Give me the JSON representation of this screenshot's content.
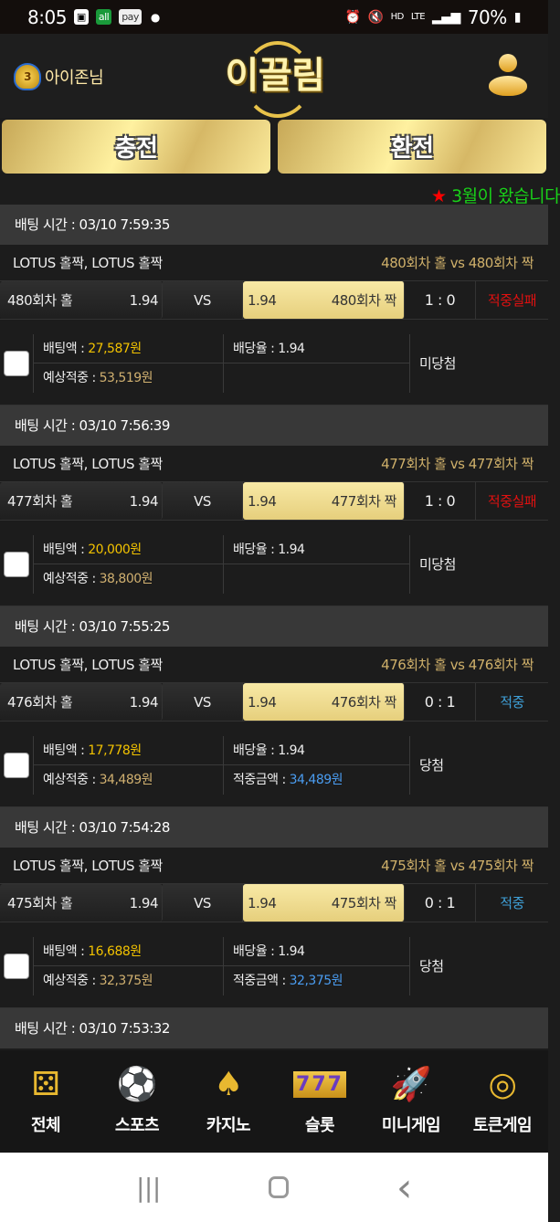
{
  "status_bar": {
    "time": "8:05",
    "icons": [
      "gallery-icon",
      "allone-icon",
      "pay-icon"
    ],
    "battery": "70%",
    "right_icons": [
      "alarm-icon",
      "mute-icon",
      "hd-voice-icon",
      "lte-icon",
      "signal-icon"
    ]
  },
  "header": {
    "username": "아이존님",
    "logo": "이끌림",
    "charge_label": "충전",
    "exchange_label": "환전"
  },
  "marquee": {
    "star": "★",
    "text": " 3월이 왔습니다"
  },
  "colors": {
    "gold": "#e6cf7c",
    "bet_amount": "#f2c200",
    "win": "#3fa0d8",
    "lose": "#e01010"
  },
  "bets": [
    {
      "time": "배팅 시간 : 03/10 7:59:35",
      "game": "LOTUS 홀짝, LOTUS 홀짝",
      "matchup": "480회차 홀  vs  480회차 짝",
      "home": "480회차 홀",
      "home_odds": "1.94",
      "vs": "VS",
      "away_odds": "1.94",
      "away": "480회차 짝",
      "score": "1 : 0",
      "result": "적중실패",
      "result_type": "lose",
      "bet_label": "배팅액 : ",
      "bet_amount": "27,587원",
      "odds_label": "배당율 : 1.94",
      "expected_label": "예상적중 : ",
      "expected": "53,519원",
      "win_label": "",
      "win_amount": "",
      "outcome": "미당첨"
    },
    {
      "time": "배팅 시간 : 03/10 7:56:39",
      "game": "LOTUS 홀짝, LOTUS 홀짝",
      "matchup": "477회차 홀  vs  477회차 짝",
      "home": "477회차 홀",
      "home_odds": "1.94",
      "vs": "VS",
      "away_odds": "1.94",
      "away": "477회차 짝",
      "score": "1 : 0",
      "result": "적중실패",
      "result_type": "lose",
      "bet_label": "배팅액 : ",
      "bet_amount": "20,000원",
      "odds_label": "배당율 : 1.94",
      "expected_label": "예상적중 : ",
      "expected": "38,800원",
      "win_label": "",
      "win_amount": "",
      "outcome": "미당첨"
    },
    {
      "time": "배팅 시간 : 03/10 7:55:25",
      "game": "LOTUS 홀짝, LOTUS 홀짝",
      "matchup": "476회차 홀  vs  476회차 짝",
      "home": "476회차 홀",
      "home_odds": "1.94",
      "vs": "VS",
      "away_odds": "1.94",
      "away": "476회차 짝",
      "score": "0 : 1",
      "result": "적중",
      "result_type": "win",
      "bet_label": "배팅액 : ",
      "bet_amount": "17,778원",
      "odds_label": "배당율 : 1.94",
      "expected_label": "예상적중 : ",
      "expected": "34,489원",
      "win_label": "적중금액 : ",
      "win_amount": "34,489원",
      "outcome": "당첨"
    },
    {
      "time": "배팅 시간 : 03/10 7:54:28",
      "game": "LOTUS 홀짝, LOTUS 홀짝",
      "matchup": "475회차 홀  vs  475회차 짝",
      "home": "475회차 홀",
      "home_odds": "1.94",
      "vs": "VS",
      "away_odds": "1.94",
      "away": "475회차 짝",
      "score": "0 : 1",
      "result": "적중",
      "result_type": "win",
      "bet_label": "배팅액 : ",
      "bet_amount": "16,688원",
      "odds_label": "배당율 : 1.94",
      "expected_label": "예상적중 : ",
      "expected": "32,375원",
      "win_label": "적중금액 : ",
      "win_amount": "32,375원",
      "outcome": "당첨"
    },
    {
      "time": "배팅 시간 : 03/10 7:53:32"
    }
  ],
  "bottom_nav": [
    {
      "label": "전체",
      "icon": "dice-icon",
      "glyph": "⚄"
    },
    {
      "label": "스포츠",
      "icon": "soccer-ball-icon",
      "glyph": "⚽"
    },
    {
      "label": "카지노",
      "icon": "cards-icon",
      "glyph": "♠"
    },
    {
      "label": "슬롯",
      "icon": "slot-777-icon",
      "glyph": "777"
    },
    {
      "label": "미니게임",
      "icon": "rocket-icon",
      "glyph": "🚀"
    },
    {
      "label": "토큰게임",
      "icon": "roulette-icon",
      "glyph": "◎"
    }
  ],
  "system_nav": {
    "recent": "|||",
    "back": "‹"
  }
}
